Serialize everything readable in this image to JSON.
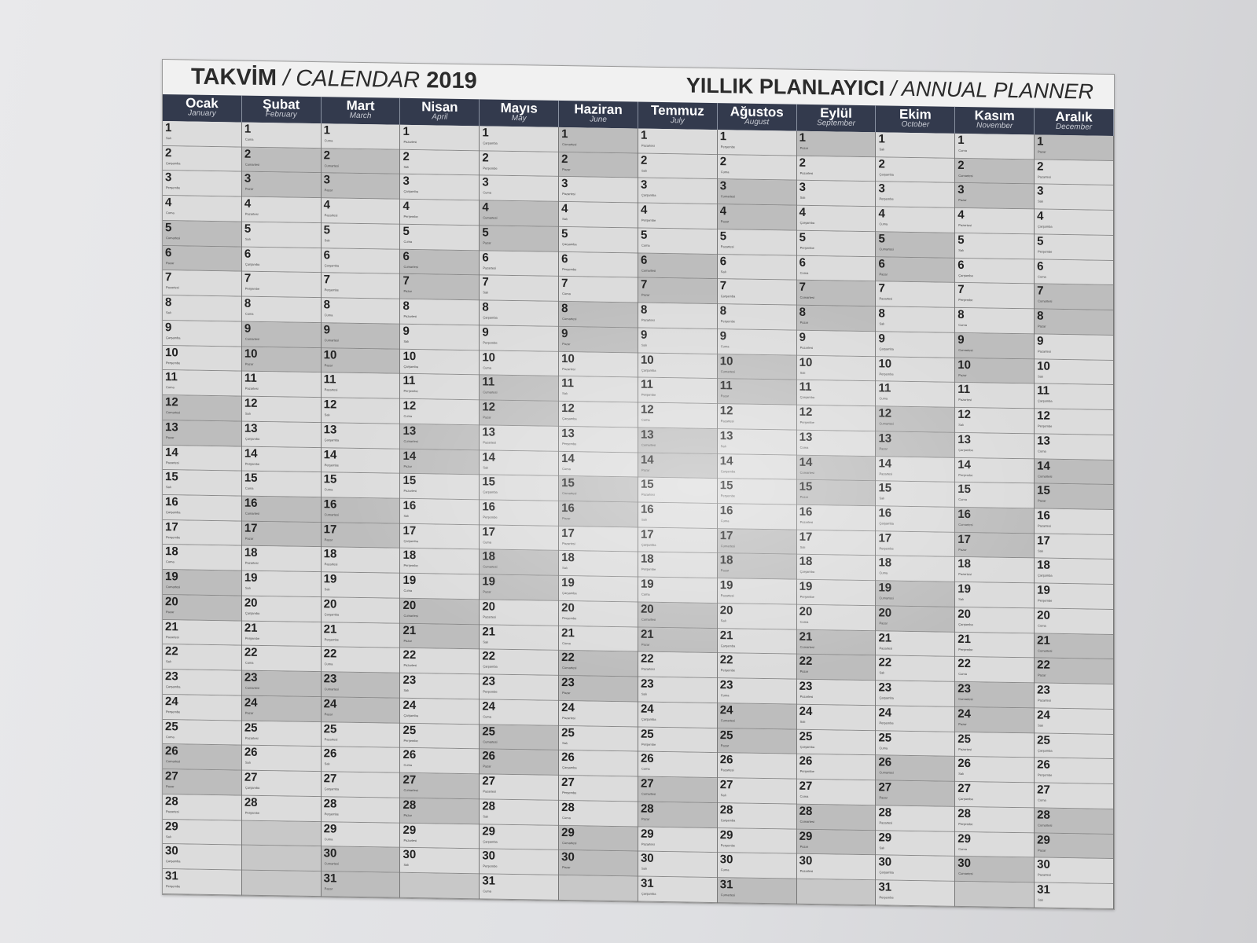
{
  "title_left": {
    "tr": "TAKVİM",
    "sep": " / ",
    "en": "CALENDAR",
    "year": "2019"
  },
  "title_right": {
    "tr": "YILLIK PLANLAYICI",
    "sep": " / ",
    "en": "ANNUAL PLANNER"
  },
  "months": [
    {
      "tr": "Ocak",
      "en": "January",
      "days": 31
    },
    {
      "tr": "Şubat",
      "en": "February",
      "days": 28
    },
    {
      "tr": "Mart",
      "en": "March",
      "days": 31
    },
    {
      "tr": "Nisan",
      "en": "April",
      "days": 30
    },
    {
      "tr": "Mayıs",
      "en": "May",
      "days": 31
    },
    {
      "tr": "Haziran",
      "en": "June",
      "days": 30
    },
    {
      "tr": "Temmuz",
      "en": "July",
      "days": 31
    },
    {
      "tr": "Ağustos",
      "en": "August",
      "days": 31
    },
    {
      "tr": "Eylül",
      "en": "September",
      "days": 30
    },
    {
      "tr": "Ekim",
      "en": "October",
      "days": 31
    },
    {
      "tr": "Kasım",
      "en": "November",
      "days": 30
    },
    {
      "tr": "Aralık",
      "en": "December",
      "days": 31
    }
  ],
  "weekdays": [
    "Pazar",
    "Pazartesi",
    "Salı",
    "Çarşamba",
    "Perşembe",
    "Cuma",
    "Cumartesi"
  ],
  "colors": {
    "header": "#333a4d",
    "weekday_cell": "#dcdcdc",
    "weekend_cell": "#bdbdbd"
  }
}
